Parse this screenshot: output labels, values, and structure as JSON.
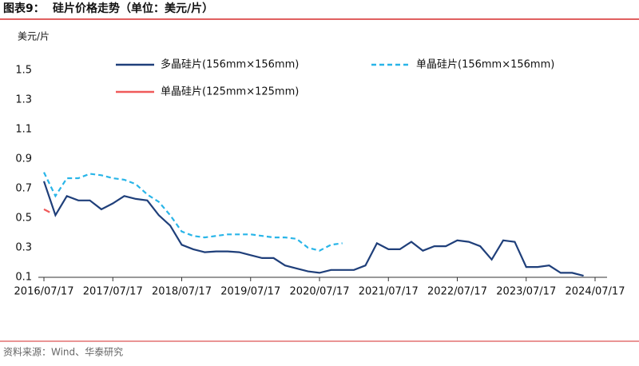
{
  "figure_label": "图表9：",
  "chart_data": {
    "type": "line",
    "title": "硅片价格走势（单位：美元/片）",
    "y_label": "美元/片",
    "source": "资料来源：Wind、华泰研究",
    "xlim": [
      "2016/07/17",
      "2024/07/17"
    ],
    "xticks": [
      "2016/07/17",
      "2017/07/17",
      "2018/07/17",
      "2019/07/17",
      "2020/07/17",
      "2021/07/17",
      "2022/07/17",
      "2023/07/17",
      "2024/07/17"
    ],
    "ylim": [
      0.1,
      1.5
    ],
    "yticks": [
      0.1,
      0.3,
      0.5,
      0.7,
      0.9,
      1.1,
      1.3,
      1.5
    ],
    "series": [
      {
        "name": "多晶硅片(156mm×156mm)",
        "color": "#1f3f7a",
        "dash": false,
        "x": [
          "2016/07/17",
          "2016/09/17",
          "2016/11/17",
          "2017/01/17",
          "2017/03/17",
          "2017/05/17",
          "2017/07/17",
          "2017/09/17",
          "2017/11/17",
          "2018/01/17",
          "2018/03/17",
          "2018/05/17",
          "2018/07/17",
          "2018/09/17",
          "2018/11/17",
          "2019/01/17",
          "2019/03/17",
          "2019/05/17",
          "2019/07/17",
          "2019/09/17",
          "2019/11/17",
          "2020/01/17",
          "2020/03/17",
          "2020/05/17",
          "2020/07/17",
          "2020/09/17",
          "2020/11/17",
          "2021/01/17",
          "2021/03/17",
          "2021/05/17",
          "2021/07/17",
          "2021/09/17",
          "2021/11/17",
          "2022/01/17",
          "2022/03/17",
          "2022/05/17",
          "2022/07/17",
          "2022/09/17",
          "2022/11/17",
          "2023/01/17",
          "2023/03/17",
          "2023/05/17",
          "2023/07/17",
          "2023/09/17",
          "2023/11/17",
          "2024/01/17",
          "2024/03/17",
          "2024/05/17"
        ],
        "values": [
          0.75,
          0.52,
          0.65,
          0.62,
          0.62,
          0.56,
          0.6,
          0.65,
          0.63,
          0.62,
          0.52,
          0.45,
          0.32,
          0.29,
          0.27,
          0.275,
          0.275,
          0.27,
          0.25,
          0.23,
          0.23,
          0.18,
          0.16,
          0.14,
          0.13,
          0.15,
          0.15,
          0.15,
          0.18,
          0.33,
          0.29,
          0.29,
          0.34,
          0.28,
          0.31,
          0.31,
          0.35,
          0.34,
          0.31,
          0.22,
          0.35,
          0.34,
          0.17,
          0.17,
          0.18,
          0.13,
          0.13,
          0.11
        ]
      },
      {
        "name": "单晶硅片(156mm×156mm)",
        "color": "#29b5e8",
        "dash": true,
        "x": [
          "2016/07/17",
          "2016/09/17",
          "2016/11/17",
          "2017/01/17",
          "2017/03/17",
          "2017/05/17",
          "2017/07/17",
          "2017/09/17",
          "2017/11/17",
          "2018/01/17",
          "2018/03/17",
          "2018/05/17",
          "2018/07/17",
          "2018/09/17",
          "2018/11/17",
          "2019/01/17",
          "2019/03/17",
          "2019/05/17",
          "2019/07/17",
          "2019/09/17",
          "2019/11/17",
          "2020/01/17",
          "2020/03/17",
          "2020/05/17",
          "2020/07/17",
          "2020/09/17",
          "2020/11/17"
        ],
        "values": [
          0.81,
          0.65,
          0.77,
          0.77,
          0.8,
          0.79,
          0.77,
          0.76,
          0.73,
          0.66,
          0.61,
          0.52,
          0.41,
          0.38,
          0.37,
          0.38,
          0.39,
          0.39,
          0.39,
          0.38,
          0.37,
          0.37,
          0.36,
          0.3,
          0.28,
          0.32,
          0.33
        ]
      },
      {
        "name": "单晶硅片(125mm×125mm)",
        "color": "#f05a5a",
        "dash": false,
        "x": [
          "2016/07/17",
          "2016/08/17"
        ],
        "values": [
          0.56,
          0.54
        ]
      }
    ]
  }
}
